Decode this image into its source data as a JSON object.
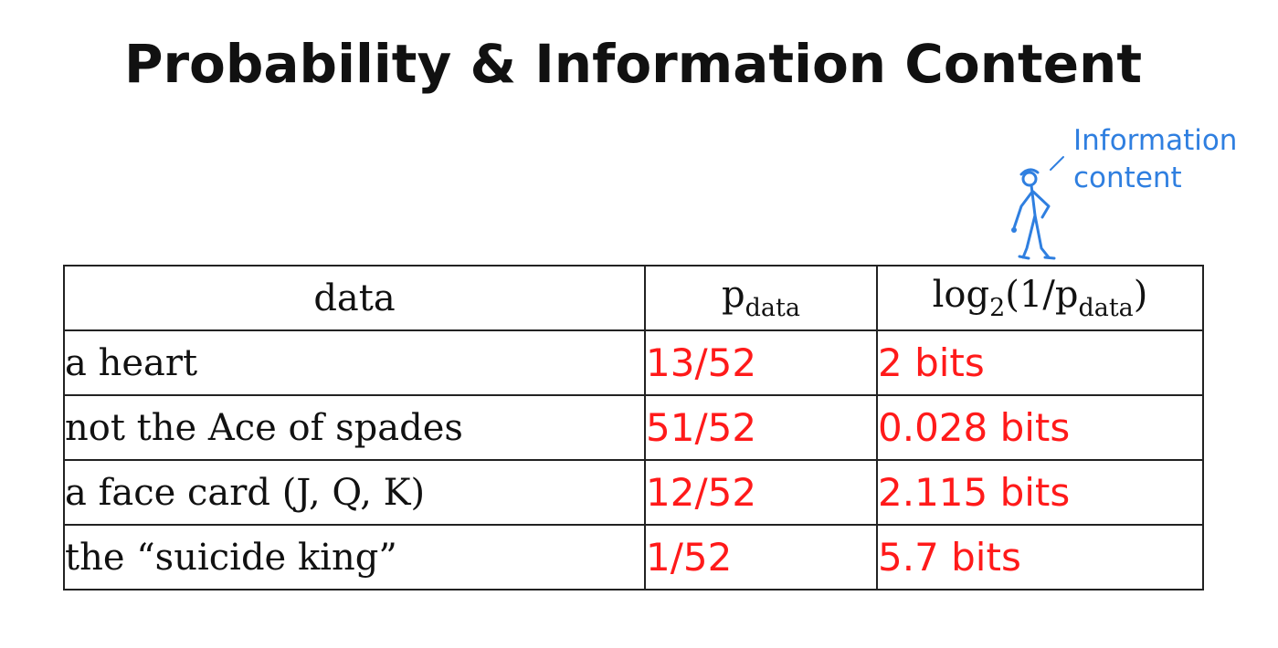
{
  "title": "Probability & Information Content",
  "annotation": {
    "line1": "Information",
    "line2": "content",
    "color": "#2f7fe0"
  },
  "table": {
    "headers": {
      "data": "data",
      "p_main": "p",
      "p_sub": "data",
      "log_prefix": "log",
      "log_base": "2",
      "log_mid": "(1/p",
      "log_sub": "data",
      "log_end": ")"
    },
    "rows": [
      {
        "data": "a heart",
        "p": "13/52",
        "info": "2 bits"
      },
      {
        "data": "not the Ace of spades",
        "p": "51/52",
        "info": "0.028 bits"
      },
      {
        "data": "a face card (J, Q, K)",
        "p": "12/52",
        "info": "2.115 bits"
      },
      {
        "data": "the “suicide king”",
        "p": "1/52",
        "info": "5.7 bits"
      }
    ],
    "value_color": "#ff1a1a"
  }
}
